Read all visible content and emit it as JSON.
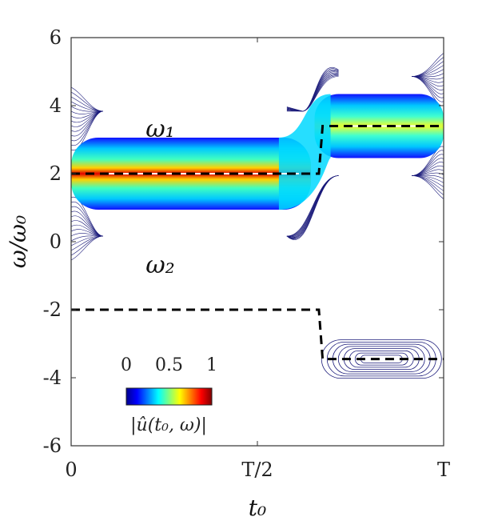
{
  "chart_data": {
    "type": "heatmap",
    "xlabel": "t₀",
    "ylabel": "ω/ω₀",
    "xlim": [
      0,
      1
    ],
    "ylim": [
      -6,
      6
    ],
    "x_ticks": [
      {
        "value": 0,
        "label": "0"
      },
      {
        "value": 0.5,
        "label": "T/2"
      },
      {
        "value": 1,
        "label": "T"
      }
    ],
    "y_ticks": [
      {
        "value": 6,
        "label": "6"
      },
      {
        "value": 4,
        "label": "4"
      },
      {
        "value": 2,
        "label": "2"
      },
      {
        "value": 0,
        "label": "0"
      },
      {
        "value": -2,
        "label": "-2"
      },
      {
        "value": -4,
        "label": "-4"
      },
      {
        "value": -6,
        "label": "-6"
      }
    ],
    "series": [
      {
        "name": "ω₁",
        "points": [
          [
            0,
            2
          ],
          [
            0.665,
            2
          ],
          [
            0.675,
            3.4
          ],
          [
            1,
            3.4
          ]
        ]
      },
      {
        "name": "ω₂",
        "points": [
          [
            0,
            -2
          ],
          [
            0.665,
            -2
          ],
          [
            0.675,
            -3.45
          ],
          [
            1,
            -3.45
          ]
        ]
      }
    ],
    "colorbar": {
      "label": "|û(t₀, ω)|",
      "ticks": [
        {
          "value": 0,
          "label": "0"
        },
        {
          "value": 0.5,
          "label": "0.5"
        },
        {
          "value": 1,
          "label": "1"
        }
      ],
      "colors": [
        "#00008f",
        "#0000ff",
        "#00ffff",
        "#ffff00",
        "#ff0000",
        "#800000"
      ]
    },
    "ridge_color": "#ffffff",
    "contour_color": "#1a1a7a",
    "curve_color": "#000000"
  }
}
